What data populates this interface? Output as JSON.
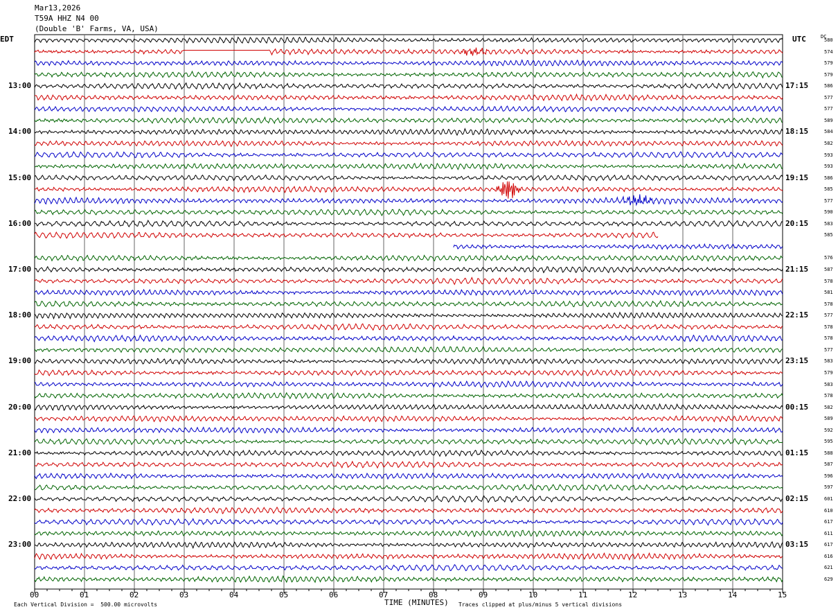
{
  "header": {
    "date": "Mar13,2026",
    "station": "T59A HHZ N4 00",
    "location": "(Double 'B' Farms, VA, USA)"
  },
  "left_timezone": "EDT",
  "right_timezone": "UTC",
  "dc_label": "DC",
  "footer": {
    "scale": "Each Vertical Division =  500.00 microvolts",
    "xlabel": "TIME (MINUTES)",
    "clip": "Traces clipped at plus/minus 5 vertical divisions"
  },
  "colors": {
    "cycle": [
      "#000000",
      "#d00000",
      "#0000c8",
      "#006400"
    ],
    "grid": "#666666"
  },
  "chart_data": {
    "type": "line",
    "title": "",
    "xlabel": "TIME (MINUTES)",
    "xlim": [
      0,
      15
    ],
    "x_ticks": [
      "00",
      "01",
      "02",
      "03",
      "04",
      "05",
      "06",
      "07",
      "08",
      "09",
      "10",
      "11",
      "12",
      "13",
      "14",
      "15"
    ],
    "row_count": 48,
    "rows_per_hour": 4,
    "left_hour_labels": [
      "13:00",
      "14:00",
      "15:00",
      "16:00",
      "17:00",
      "18:00",
      "19:00",
      "20:00",
      "21:00",
      "22:00",
      "23:00"
    ],
    "right_hour_labels": [
      "17:15",
      "18:15",
      "19:15",
      "20:15",
      "21:15",
      "22:15",
      "23:15",
      "00:15",
      "01:15",
      "02:15",
      "03:15"
    ],
    "dc_offsets": [
      "580",
      "574",
      "579",
      "579",
      "586",
      "577",
      "577",
      "589",
      "584",
      "582",
      "593",
      "593",
      "586",
      "585",
      "577",
      "590",
      "583",
      "585",
      "",
      "576",
      "587",
      "578",
      "581",
      "578",
      "577",
      "578",
      "578",
      "577",
      "583",
      "579",
      "583",
      "578",
      "582",
      "589",
      "592",
      "595",
      "588",
      "587",
      "596",
      "597",
      "601",
      "610",
      "617",
      "611",
      "617",
      "616",
      "621",
      "629"
    ],
    "events": [
      {
        "row": 1,
        "gap_minutes": [
          3.0,
          4.7
        ]
      },
      {
        "row": 1,
        "burst_minute": 8.8,
        "amplitude": "small"
      },
      {
        "row": 13,
        "burst_minute": 9.5,
        "amplitude": "large"
      },
      {
        "row": 14,
        "burst_minute": 12.1,
        "amplitude": "medium"
      },
      {
        "row": 17,
        "ends_minute": 12.5
      },
      {
        "row": 18,
        "starts_minute": 8.4
      }
    ]
  }
}
